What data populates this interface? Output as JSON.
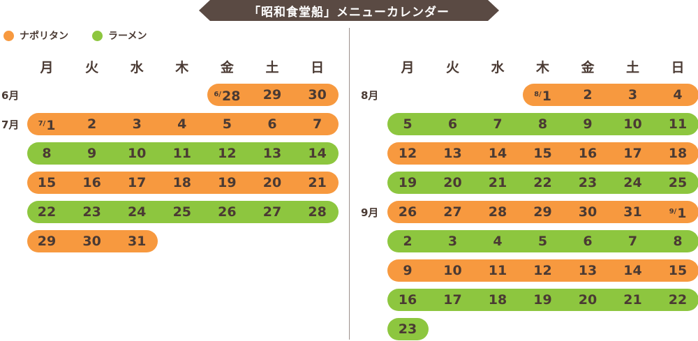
{
  "title": "「昭和食堂船」メニューカレンダー",
  "legend": [
    {
      "label": "ナポリタン",
      "color": "#f7993f"
    },
    {
      "label": "ラーメン",
      "color": "#8dc63f"
    }
  ],
  "weekdays": [
    "月",
    "火",
    "水",
    "木",
    "金",
    "土",
    "日"
  ],
  "colors": {
    "napolitan": "#f7993f",
    "ramen": "#8dc63f",
    "text": "#4a3a33",
    "banner": "#5a4a43"
  },
  "panels": [
    {
      "name": "left",
      "rows": [
        {
          "month": "6月",
          "menu": "napolitan",
          "startCol": 4,
          "cells": [
            {
              "pre": "6/",
              "day": "28"
            },
            {
              "day": "29"
            },
            {
              "day": "30"
            }
          ]
        },
        {
          "month": "7月",
          "menu": "napolitan",
          "startCol": 0,
          "cells": [
            {
              "pre": "7/",
              "day": "1"
            },
            {
              "day": "2"
            },
            {
              "day": "3"
            },
            {
              "day": "4"
            },
            {
              "day": "5"
            },
            {
              "day": "6"
            },
            {
              "day": "7"
            }
          ]
        },
        {
          "month": "",
          "menu": "ramen",
          "startCol": 0,
          "cells": [
            {
              "day": "8"
            },
            {
              "day": "9"
            },
            {
              "day": "10"
            },
            {
              "day": "11"
            },
            {
              "day": "12"
            },
            {
              "day": "13"
            },
            {
              "day": "14"
            }
          ]
        },
        {
          "month": "",
          "menu": "napolitan",
          "startCol": 0,
          "cells": [
            {
              "day": "15"
            },
            {
              "day": "16"
            },
            {
              "day": "17"
            },
            {
              "day": "18"
            },
            {
              "day": "19"
            },
            {
              "day": "20"
            },
            {
              "day": "21"
            }
          ]
        },
        {
          "month": "",
          "menu": "ramen",
          "startCol": 0,
          "cells": [
            {
              "day": "22"
            },
            {
              "day": "23"
            },
            {
              "day": "24"
            },
            {
              "day": "25"
            },
            {
              "day": "26"
            },
            {
              "day": "27"
            },
            {
              "day": "28"
            }
          ]
        },
        {
          "month": "",
          "menu": "napolitan",
          "startCol": 0,
          "cells": [
            {
              "day": "29"
            },
            {
              "day": "30"
            },
            {
              "day": "31"
            }
          ]
        }
      ]
    },
    {
      "name": "right",
      "rows": [
        {
          "month": "8月",
          "menu": "napolitan",
          "startCol": 3,
          "cells": [
            {
              "pre": "8/",
              "day": "1"
            },
            {
              "day": "2"
            },
            {
              "day": "3"
            },
            {
              "day": "4"
            }
          ]
        },
        {
          "month": "",
          "menu": "ramen",
          "startCol": 0,
          "cells": [
            {
              "day": "5"
            },
            {
              "day": "6"
            },
            {
              "day": "7"
            },
            {
              "day": "8"
            },
            {
              "day": "9"
            },
            {
              "day": "10"
            },
            {
              "day": "11"
            }
          ]
        },
        {
          "month": "",
          "menu": "napolitan",
          "startCol": 0,
          "cells": [
            {
              "day": "12"
            },
            {
              "day": "13"
            },
            {
              "day": "14"
            },
            {
              "day": "15"
            },
            {
              "day": "16"
            },
            {
              "day": "17"
            },
            {
              "day": "18"
            }
          ]
        },
        {
          "month": "",
          "menu": "ramen",
          "startCol": 0,
          "cells": [
            {
              "day": "19"
            },
            {
              "day": "20"
            },
            {
              "day": "21"
            },
            {
              "day": "22"
            },
            {
              "day": "23"
            },
            {
              "day": "24"
            },
            {
              "day": "25"
            }
          ]
        },
        {
          "month": "9月",
          "menu": "napolitan",
          "startCol": 0,
          "cells": [
            {
              "day": "26"
            },
            {
              "day": "27"
            },
            {
              "day": "28"
            },
            {
              "day": "29"
            },
            {
              "day": "30"
            },
            {
              "day": "31"
            },
            {
              "pre": "9/",
              "day": "1"
            }
          ]
        },
        {
          "month": "",
          "menu": "ramen",
          "startCol": 0,
          "cells": [
            {
              "day": "2"
            },
            {
              "day": "3"
            },
            {
              "day": "4"
            },
            {
              "day": "5"
            },
            {
              "day": "6"
            },
            {
              "day": "7"
            },
            {
              "day": "8"
            }
          ]
        },
        {
          "month": "",
          "menu": "napolitan",
          "startCol": 0,
          "cells": [
            {
              "day": "9"
            },
            {
              "day": "10"
            },
            {
              "day": "11"
            },
            {
              "day": "12"
            },
            {
              "day": "13"
            },
            {
              "day": "14"
            },
            {
              "day": "15"
            }
          ]
        },
        {
          "month": "",
          "menu": "ramen",
          "startCol": 0,
          "cells": [
            {
              "day": "16"
            },
            {
              "day": "17"
            },
            {
              "day": "18"
            },
            {
              "day": "19"
            },
            {
              "day": "20"
            },
            {
              "day": "21"
            },
            {
              "day": "22"
            }
          ]
        },
        {
          "month": "",
          "menu": "ramen",
          "startCol": 0,
          "cells": [
            {
              "day": "23"
            }
          ]
        }
      ]
    }
  ]
}
